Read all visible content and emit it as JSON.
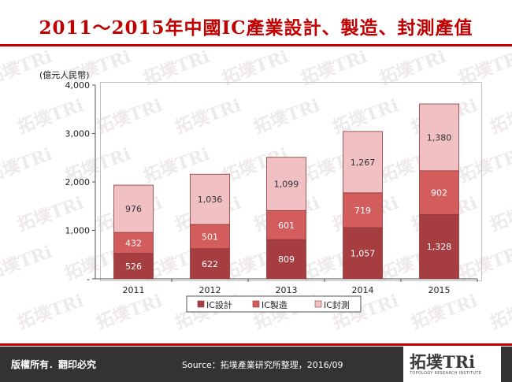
{
  "title": "2011～2015年中國IC產業設計、製造、封測產值",
  "watermark_text": "拓墣TRi",
  "chart_data": {
    "type": "bar",
    "stacked": true,
    "unit_label": "(億元人民幣)",
    "categories": [
      "2011",
      "2012",
      "2013",
      "2014",
      "2015"
    ],
    "series": [
      {
        "name": "IC設計",
        "color": "#a63d40",
        "values": [
          526,
          622,
          809,
          1057,
          1328
        ],
        "labels": [
          "526",
          "622",
          "809",
          "1,057",
          "1,328"
        ]
      },
      {
        "name": "IC製造",
        "color": "#d35c5c",
        "values": [
          432,
          501,
          601,
          719,
          902
        ],
        "labels": [
          "432",
          "501",
          "601",
          "719",
          "902"
        ]
      },
      {
        "name": "IC封測",
        "color": "#f0c0c3",
        "values": [
          976,
          1036,
          1099,
          1267,
          1380
        ],
        "labels": [
          "976",
          "1,036",
          "1,099",
          "1,267",
          "1,380"
        ]
      }
    ],
    "ylim": [
      0,
      4000
    ],
    "yticks": [
      0,
      1000,
      2000,
      3000,
      4000
    ],
    "ytick_labels": [
      "-",
      "1,000",
      "2,000",
      "3,000",
      "4,000"
    ],
    "legend_position": "bottom",
    "grid": false
  },
  "footer": {
    "copyright": "版權所有．翻印必究",
    "source": "Source：拓墣產業研究所整理，2016/09",
    "logo_text": "拓墣TRi",
    "logo_subtitle": "TOPOLOGY RESEARCH INSTITUTE"
  }
}
